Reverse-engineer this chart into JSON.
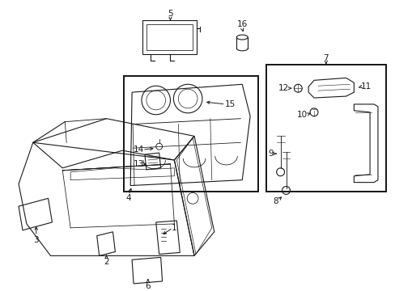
{
  "bg_color": "#ffffff",
  "line_color": "#1a1a1a",
  "figsize": [
    4.89,
    3.6
  ],
  "dpi": 100,
  "label_fontsize": 7.5
}
